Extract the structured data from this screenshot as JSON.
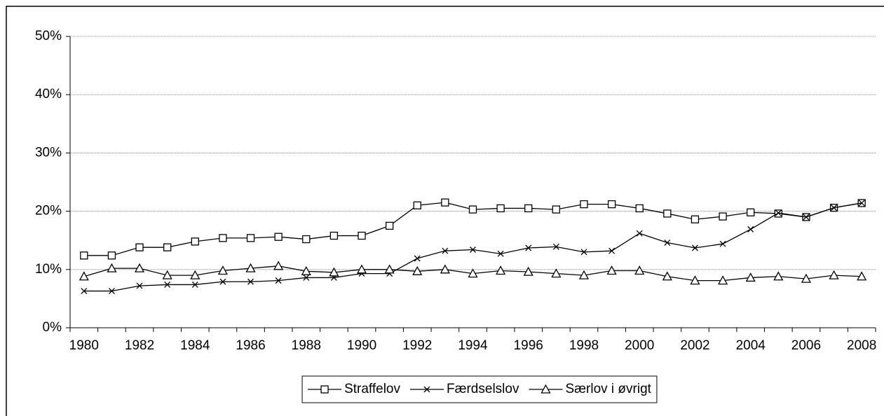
{
  "chart_data": {
    "type": "line",
    "categories": [
      "1980",
      null,
      "1982",
      null,
      "1984",
      null,
      "1986",
      null,
      "1988",
      null,
      "1990",
      null,
      "1992",
      null,
      "1994",
      null,
      "1996",
      null,
      "1998",
      null,
      "2000",
      null,
      "2002",
      null,
      "2004",
      null,
      "2006",
      null,
      "2008"
    ],
    "series": [
      {
        "name": "Straffelov",
        "color": "#000000",
        "marker": "square",
        "values": [
          12.4,
          12.4,
          13.8,
          13.8,
          14.8,
          15.4,
          15.4,
          15.6,
          15.2,
          15.8,
          15.8,
          17.5,
          21.0,
          21.5,
          20.3,
          20.5,
          20.5,
          20.3,
          21.2,
          21.2,
          20.5,
          19.6,
          18.6,
          19.1,
          19.8,
          19.6,
          19.0,
          20.6,
          21.4
        ]
      },
      {
        "name": "Færdselslov",
        "color": "#000000",
        "marker": "x",
        "values": [
          6.3,
          6.3,
          7.2,
          7.4,
          7.4,
          7.9,
          7.9,
          8.1,
          8.6,
          8.6,
          9.3,
          9.3,
          11.9,
          13.2,
          13.4,
          12.7,
          13.7,
          13.9,
          13.0,
          13.2,
          16.2,
          14.6,
          13.7,
          14.4,
          16.9,
          19.7,
          19.0,
          20.6,
          21.4
        ]
      },
      {
        "name": "Særlov i øvrigt",
        "color": "#000000",
        "marker": "triangle",
        "values": [
          8.8,
          10.2,
          10.2,
          9.0,
          9.0,
          9.8,
          10.2,
          10.6,
          9.7,
          9.5,
          10.0,
          10.0,
          9.7,
          10.0,
          9.3,
          9.8,
          9.6,
          9.3,
          9.0,
          9.8,
          9.8,
          8.8,
          8.1,
          8.1,
          8.6,
          8.8,
          8.4,
          9.0,
          8.8
        ]
      }
    ],
    "ylim": [
      0,
      50
    ],
    "yticks": [
      {
        "value": 0,
        "label": "0%"
      },
      {
        "value": 10,
        "label": "10%"
      },
      {
        "value": 20,
        "label": "20%"
      },
      {
        "value": 30,
        "label": "30%"
      },
      {
        "value": 40,
        "label": "40%"
      },
      {
        "value": 50,
        "label": "50%"
      }
    ],
    "grid": true,
    "legend": "bottom"
  }
}
